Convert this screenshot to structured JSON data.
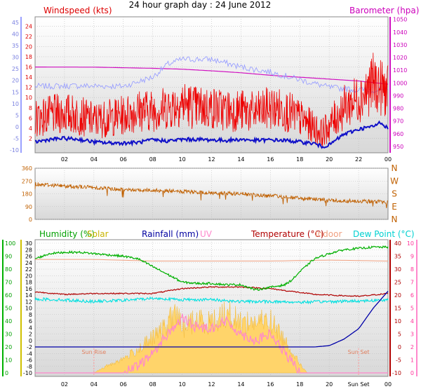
{
  "title": "24 hour graph day : 24 June 2012",
  "colors": {
    "wind_avg": "#1010c8",
    "wind_gust": "#ee0000",
    "wind_axis": "#9aa0ff",
    "baro": "#d010c0",
    "dir": "#c06000",
    "humidity": "#00b000",
    "solar_fill": "#ffd46a",
    "solar_text": "#c8b400",
    "rain": "#0000a8",
    "uv": "#ff88cc",
    "temp": "#b00000",
    "indoor": "#f0a080",
    "dew": "#00e0e0",
    "grid": "#bbbbbb",
    "bg": "#dedede"
  },
  "chart_data": [
    {
      "type": "line",
      "title": "24 hour graph day : 24 June 2012",
      "left_axis_label": "Windspeed (kts)",
      "right_axis_label": "Barometer (hpa)",
      "x_ticks": [
        "02",
        "04",
        "06",
        "08",
        "10",
        "12",
        "14",
        "16",
        "18",
        "20",
        "22",
        "00"
      ],
      "y_left_ticks": [
        "2",
        "4",
        "6",
        "8",
        "10",
        "12",
        "14",
        "16",
        "18",
        "20",
        "22",
        "24"
      ],
      "y_left_outer_ticks": [
        "-10",
        "-5",
        "0",
        "5",
        "10",
        "15",
        "20",
        "25",
        "30",
        "35",
        "40",
        "45"
      ],
      "y_right_ticks": [
        "950",
        "960",
        "970",
        "980",
        "990",
        "1000",
        "1010",
        "1020",
        "1030",
        "1040",
        "1050"
      ],
      "ylim_left": [
        0,
        25
      ],
      "ylim_right": [
        945,
        1052
      ],
      "series": [
        {
          "name": "Windspeed (kts)",
          "x": [
            0,
            1,
            2,
            3,
            4,
            5,
            6,
            7,
            8,
            9,
            10,
            11,
            12,
            13,
            14,
            15,
            16,
            17,
            18,
            19,
            19.5,
            20,
            21,
            22,
            22.5,
            23,
            23.5,
            24
          ],
          "values": [
            6,
            6.5,
            7,
            6.5,
            5.5,
            6,
            6.5,
            7.5,
            7.5,
            8,
            9,
            8,
            8,
            7.5,
            7.5,
            7,
            8,
            7.5,
            6,
            4,
            3,
            4.5,
            8,
            10,
            11,
            13,
            12,
            11
          ]
        },
        {
          "name": "Average",
          "x": [
            0,
            1,
            2,
            3,
            4,
            5,
            6,
            7,
            8,
            9,
            10,
            11,
            12,
            13,
            14,
            15,
            16,
            17,
            18,
            19,
            19.5,
            20,
            21,
            22,
            22.5,
            23,
            23.5,
            24
          ],
          "values": [
            1.3,
            1.8,
            2,
            1.8,
            1.3,
            1.1,
            1.1,
            1.2,
            1.7,
            1.5,
            1.8,
            1.8,
            1.7,
            1.6,
            1.8,
            1.6,
            1.7,
            1.6,
            1.3,
            1.0,
            0.4,
            0.7,
            2.8,
            3.8,
            4.1,
            4.3,
            5.2,
            3.9
          ]
        },
        {
          "name": "Barometer (hpa)",
          "x": [
            0,
            4,
            8,
            10,
            12,
            14,
            16,
            18,
            20,
            22,
            24
          ],
          "values": [
            1012.5,
            1012.4,
            1011.5,
            1010.8,
            1009.5,
            1008,
            1006,
            1004.5,
            1003,
            1001.5,
            999
          ]
        },
        {
          "name": "Wind axis trace",
          "x": [
            0,
            3,
            6,
            8,
            9,
            10,
            12,
            14,
            16,
            18,
            20,
            22,
            24
          ],
          "values": [
            12.2,
            12.3,
            12.2,
            14,
            16.5,
            17.5,
            17.5,
            16,
            15,
            13.5,
            12,
            11.5,
            11.5
          ]
        }
      ]
    },
    {
      "type": "line",
      "title": "",
      "y_left_ticks": [
        "0",
        "90",
        "180",
        "270",
        "360"
      ],
      "right_labels": [
        "N",
        "W",
        "S",
        "E",
        "N"
      ],
      "ylim": [
        0,
        360
      ],
      "series": [
        {
          "name": "Wind direction",
          "x": [
            0,
            2,
            4,
            6,
            8,
            10,
            12,
            14,
            16,
            17,
            18,
            19,
            20,
            21,
            22,
            23,
            24
          ],
          "values": [
            250,
            235,
            225,
            210,
            205,
            195,
            185,
            180,
            165,
            160,
            148,
            140,
            135,
            130,
            130,
            125,
            122
          ]
        }
      ]
    },
    {
      "type": "area",
      "title": "",
      "legend": [
        "Humidity (%)",
        "Solar",
        "Rainfall (mm)",
        "UV",
        "Temperature (°C)",
        "Indoor",
        "Dew Point (°C)"
      ],
      "y_humidity_ticks": [
        "0",
        "10",
        "20",
        "30",
        "40",
        "50",
        "60",
        "70",
        "80",
        "90",
        "100"
      ],
      "y_solar_ticks": [
        "0",
        "100",
        "200",
        "300",
        "400",
        "500",
        "600",
        "700",
        "800",
        "900",
        "1000"
      ],
      "y_temp_ticks": [
        "-10",
        "-8",
        "-6",
        "-4",
        "-2",
        "0",
        "2",
        "4",
        "6",
        "8",
        "10",
        "12",
        "14",
        "16",
        "18",
        "20",
        "22",
        "24",
        "26",
        "28",
        "30"
      ],
      "y_right_temp_ticks": [
        "-10",
        "-5",
        "0",
        "5",
        "10",
        "15",
        "20",
        "25",
        "30",
        "35",
        "40"
      ],
      "y_uv_ticks": [
        "0",
        "1",
        "2",
        "3",
        "4",
        "5",
        "6",
        "7",
        "8",
        "9",
        "10"
      ],
      "annotations": [
        "Sun Rise",
        "Sun Set"
      ],
      "x_ticks": [
        "02",
        "04",
        "06",
        "08",
        "10",
        "12",
        "14",
        "16",
        "18",
        "20",
        "Sun Set",
        "00"
      ],
      "series": [
        {
          "name": "Humidity (%)",
          "x": [
            0,
            1,
            2,
            3,
            4,
            5,
            6,
            7,
            8,
            9,
            10,
            11,
            12,
            13,
            14,
            15,
            16,
            17,
            17.5,
            18,
            19,
            20,
            21,
            22,
            23,
            24
          ],
          "values": [
            88,
            92,
            93,
            93,
            92,
            91,
            90,
            88,
            82,
            76,
            70,
            69,
            69,
            68,
            68,
            64,
            66,
            68,
            72,
            78,
            88,
            92,
            95,
            96,
            97,
            97
          ]
        },
        {
          "name": "Solar",
          "x": [
            0,
            4,
            5,
            6,
            7,
            8,
            9,
            9.5,
            10,
            11,
            12,
            13,
            14,
            15,
            16,
            17,
            18,
            18.5,
            24
          ],
          "values": [
            0,
            0,
            60,
            110,
            180,
            270,
            360,
            480,
            350,
            410,
            390,
            460,
            390,
            390,
            400,
            250,
            70,
            0,
            0
          ]
        },
        {
          "name": "Rainfall (mm)",
          "x": [
            0,
            19,
            20,
            21,
            22,
            23,
            24
          ],
          "values": [
            0,
            0,
            0.5,
            3,
            7,
            15,
            21.5
          ]
        },
        {
          "name": "UV",
          "x": [
            0,
            6,
            7,
            8,
            9,
            10,
            11,
            12,
            13,
            14,
            15,
            16,
            17,
            18,
            24
          ],
          "values": [
            0,
            0,
            0.5,
            1.5,
            3,
            4.2,
            3.5,
            3.5,
            4,
            3,
            2.5,
            3,
            1.5,
            0,
            0
          ]
        },
        {
          "name": "Temperature (°C)",
          "x": [
            0,
            2,
            4,
            6,
            8,
            10,
            12,
            14,
            16,
            18,
            19,
            20,
            22,
            24
          ],
          "values": [
            15,
            14.2,
            14.5,
            14.5,
            14.5,
            16,
            16.5,
            16.5,
            16,
            14.8,
            14.2,
            14,
            13.6,
            14.5
          ]
        },
        {
          "name": "Indoor",
          "x": [
            0,
            4,
            8,
            12,
            16,
            20,
            24
          ],
          "values": [
            25,
            25,
            24.5,
            24.5,
            24.5,
            24.8,
            24.5
          ]
        },
        {
          "name": "Dew Point (°C)",
          "x": [
            0,
            2,
            4,
            6,
            8,
            10,
            12,
            14,
            16,
            18,
            20,
            22,
            24
          ],
          "values": [
            12.8,
            12.5,
            12,
            12.4,
            13,
            12.6,
            12.6,
            12,
            12,
            11.8,
            12,
            12.2,
            12.5
          ]
        }
      ]
    }
  ]
}
